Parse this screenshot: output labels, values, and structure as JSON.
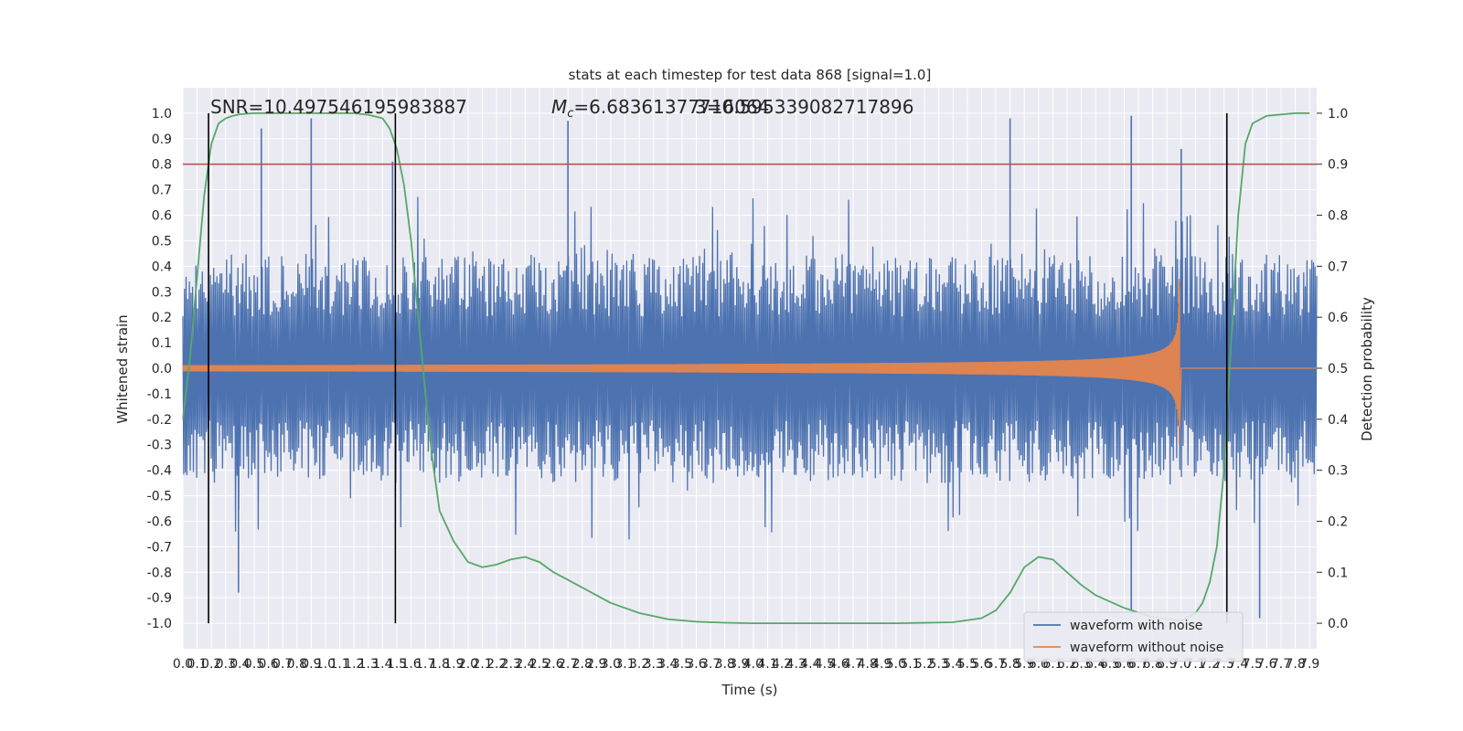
{
  "chart_data": {
    "type": "line",
    "title": "stats at each timestep for test data 868 [signal=1.0]",
    "xlabel": "Time (s)",
    "ylabel": "Whitened strain",
    "y2label": "Detection probability",
    "xlim": [
      0.0,
      7.95
    ],
    "ylim": [
      -1.1,
      1.1
    ],
    "y2lim": [
      -0.05,
      1.05
    ],
    "x_tick_step": 0.1,
    "y_ticks": [
      "-1.0",
      "-0.9",
      "-0.8",
      "-0.7",
      "-0.6",
      "-0.5",
      "-0.4",
      "-0.3",
      "-0.2",
      "-0.1",
      "0.0",
      "0.1",
      "0.2",
      "0.3",
      "0.4",
      "0.5",
      "0.6",
      "0.7",
      "0.8",
      "0.9",
      "1.0"
    ],
    "y2_ticks": [
      "0.0",
      "0.1",
      "0.2",
      "0.3",
      "0.4",
      "0.5",
      "0.6",
      "0.7",
      "0.8",
      "0.9",
      "1.0"
    ],
    "grid": true,
    "legend_position": "lower-right",
    "annotations": {
      "snr": "SNR=10.497546195983887",
      "mc": "=6.68361377716064",
      "mc_symbol": "M",
      "mc_sub": "c",
      "overlap": "3=0.595339082717896"
    },
    "threshold_y2": 0.9,
    "vertical_lines_x": [
      0.18,
      1.49,
      7.32
    ],
    "series": [
      {
        "name": "waveform with noise",
        "color": "#4c72b0",
        "description_values": "noise with typical envelope ±0.45, spikes up to ±1.0",
        "noise_envelope": 0.45,
        "spikes": [
          [
            0.55,
            0.94
          ],
          [
            0.9,
            0.98
          ],
          [
            1.47,
            0.81
          ],
          [
            2.7,
            0.97
          ],
          [
            5.8,
            0.98
          ],
          [
            6.65,
            0.99
          ],
          [
            7.0,
            0.86
          ],
          [
            0.39,
            -0.88
          ],
          [
            6.65,
            -0.95
          ],
          [
            7.55,
            -0.98
          ]
        ]
      },
      {
        "name": "waveform without noise",
        "color": "#dd8452",
        "chirp_end": 6.99,
        "peak": 0.35,
        "trough": -0.23
      },
      {
        "name": "detection probability",
        "color": "#55a868",
        "axis": "y2",
        "x": [
          0.0,
          0.05,
          0.1,
          0.15,
          0.2,
          0.25,
          0.3,
          0.35,
          0.4,
          0.5,
          0.6,
          0.8,
          1.0,
          1.2,
          1.3,
          1.4,
          1.45,
          1.5,
          1.55,
          1.6,
          1.65,
          1.7,
          1.75,
          1.8,
          1.9,
          2.0,
          2.1,
          2.2,
          2.3,
          2.4,
          2.5,
          2.6,
          2.7,
          2.8,
          2.9,
          3.0,
          3.2,
          3.4,
          3.6,
          3.8,
          4.0,
          4.5,
          5.0,
          5.4,
          5.6,
          5.7,
          5.8,
          5.9,
          6.0,
          6.1,
          6.2,
          6.3,
          6.4,
          6.6,
          6.8,
          7.0,
          7.1,
          7.15,
          7.2,
          7.25,
          7.3,
          7.35,
          7.4,
          7.45,
          7.5,
          7.6,
          7.8,
          7.9
        ],
        "y": [
          0.4,
          0.52,
          0.68,
          0.84,
          0.94,
          0.98,
          0.99,
          0.995,
          0.998,
          1.0,
          1.0,
          1.0,
          1.0,
          1.0,
          0.997,
          0.99,
          0.97,
          0.93,
          0.86,
          0.75,
          0.6,
          0.45,
          0.32,
          0.22,
          0.16,
          0.12,
          0.11,
          0.115,
          0.125,
          0.13,
          0.12,
          0.1,
          0.085,
          0.07,
          0.055,
          0.04,
          0.02,
          0.008,
          0.003,
          0.001,
          0.0,
          0.0,
          0.0,
          0.002,
          0.01,
          0.025,
          0.06,
          0.11,
          0.13,
          0.125,
          0.1,
          0.075,
          0.055,
          0.03,
          0.012,
          0.005,
          0.02,
          0.04,
          0.08,
          0.15,
          0.3,
          0.55,
          0.8,
          0.94,
          0.98,
          0.995,
          1.0,
          1.0
        ]
      }
    ]
  }
}
